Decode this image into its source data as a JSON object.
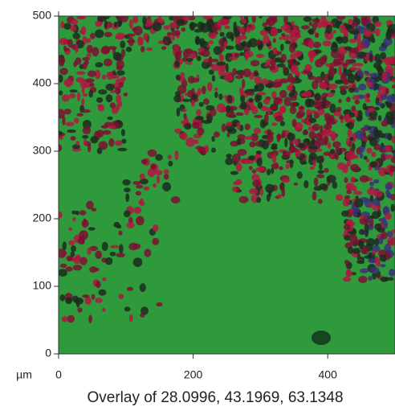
{
  "chart_data": {
    "type": "image",
    "title": "Overlay of 28.0996, 43.1969, 63.1348",
    "xlabel": "µm",
    "xlim": [
      0,
      500
    ],
    "ylim": [
      0,
      500
    ],
    "xticks": [
      0,
      200,
      400
    ],
    "yticks": [
      0,
      100,
      200,
      300,
      400,
      500
    ]
  }
}
